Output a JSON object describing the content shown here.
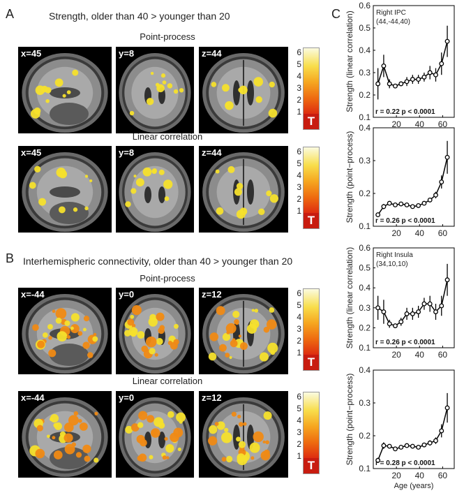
{
  "panel_a": {
    "letter": "A",
    "title": "Strength, older than 40 > younger than 20",
    "row1_label": "Point-process",
    "row2_label": "Linear correlation",
    "row1_coords": [
      "x=45",
      "y=8",
      "z=44"
    ],
    "row2_coords": [
      "x=45",
      "y=8",
      "z=44"
    ]
  },
  "panel_b": {
    "letter": "B",
    "title": "Interhemispheric connectivity, older than 40 > younger than 20",
    "row1_label": "Point-process",
    "row2_label": "Linear correlation",
    "row1_coords": [
      "x=-44",
      "y=0",
      "z=12"
    ],
    "row2_coords": [
      "x=-44",
      "y=0",
      "z=12"
    ]
  },
  "panel_c": {
    "letter": "C",
    "xlabel": "Age (years)"
  },
  "colorbar": {
    "ticks": [
      "6",
      "5",
      "4",
      "3",
      "2",
      "1"
    ],
    "label": "T"
  },
  "colors": {
    "line": "#000000",
    "blob_yellow": "#f6e02c",
    "blob_orange": "#f08a14",
    "colorbar_low": "#b01010",
    "colorbar_high": "#fbfbe0"
  },
  "chart_data": [
    {
      "type": "line",
      "annotation": [
        "Right IPC",
        "(44,-44,40)"
      ],
      "ylabel": "Strength (linear correlation)",
      "xlabel": "",
      "xlim": [
        0,
        70
      ],
      "xticks": [
        20,
        40,
        60
      ],
      "ylim": [
        0.1,
        0.6
      ],
      "yticks": [
        0.1,
        0.2,
        0.3,
        0.4,
        0.5,
        0.6
      ],
      "ytick_labels": [
        "0.1",
        "0.2",
        "0.3",
        "0.4",
        "0.5",
        "0.6"
      ],
      "stats": "r = 0.22   p < 0.0001",
      "x": [
        4,
        9,
        14,
        19,
        24,
        29,
        34,
        39,
        44,
        49,
        54,
        59,
        64
      ],
      "y": [
        0.25,
        0.33,
        0.25,
        0.24,
        0.25,
        0.26,
        0.27,
        0.27,
        0.28,
        0.3,
        0.29,
        0.34,
        0.44
      ],
      "err": [
        0.07,
        0.05,
        0.02,
        0.01,
        0.01,
        0.02,
        0.02,
        0.02,
        0.02,
        0.03,
        0.03,
        0.05,
        0.07
      ]
    },
    {
      "type": "line",
      "ylabel": "Strength (point−process)",
      "xlabel": "",
      "xlim": [
        0,
        70
      ],
      "xticks": [
        20,
        40,
        60
      ],
      "ylim": [
        0.1,
        0.4
      ],
      "yticks": [
        0.1,
        0.2,
        0.3,
        0.4
      ],
      "ytick_labels": [
        "0.1",
        "0.2",
        "0.3",
        "0.4"
      ],
      "stats": "r = 0.26   p < 0.0001",
      "x": [
        4,
        9,
        14,
        19,
        24,
        29,
        34,
        39,
        44,
        49,
        54,
        59,
        64
      ],
      "y": [
        0.135,
        0.16,
        0.17,
        0.165,
        0.168,
        0.165,
        0.16,
        0.163,
        0.17,
        0.18,
        0.195,
        0.235,
        0.31
      ],
      "err": [
        0.005,
        0.008,
        0.005,
        0.004,
        0.004,
        0.004,
        0.004,
        0.004,
        0.005,
        0.006,
        0.01,
        0.02,
        0.05
      ]
    },
    {
      "type": "line",
      "annotation": [
        "Right Insula",
        "(34,10,10)"
      ],
      "ylabel": "Strength (linear correlation)",
      "xlabel": "",
      "xlim": [
        0,
        70
      ],
      "xticks": [
        20,
        40,
        60
      ],
      "ylim": [
        0.1,
        0.6
      ],
      "yticks": [
        0.1,
        0.2,
        0.3,
        0.4,
        0.5,
        0.6
      ],
      "ytick_labels": [
        "0.1",
        "0.2",
        "0.3",
        "0.4",
        "0.5",
        "0.6"
      ],
      "stats": "r = 0.26   p < 0.0001",
      "x": [
        4,
        9,
        14,
        19,
        24,
        29,
        34,
        39,
        44,
        49,
        54,
        59,
        64
      ],
      "y": [
        0.3,
        0.28,
        0.22,
        0.21,
        0.23,
        0.27,
        0.27,
        0.28,
        0.32,
        0.32,
        0.28,
        0.31,
        0.44
      ],
      "err": [
        0.06,
        0.06,
        0.02,
        0.01,
        0.02,
        0.03,
        0.03,
        0.03,
        0.03,
        0.04,
        0.04,
        0.05,
        0.08
      ]
    },
    {
      "type": "line",
      "ylabel": "Strength (point−process)",
      "xlabel": "Age (years)",
      "xlim": [
        0,
        70
      ],
      "xticks": [
        20,
        40,
        60
      ],
      "ylim": [
        0.1,
        0.4
      ],
      "yticks": [
        0.1,
        0.2,
        0.3,
        0.4
      ],
      "ytick_labels": [
        "0.1",
        "0.2",
        "0.3",
        "0.4"
      ],
      "stats": "r = 0.28   p < 0.0001",
      "x": [
        4,
        9,
        14,
        19,
        24,
        29,
        34,
        39,
        44,
        49,
        54,
        59,
        64
      ],
      "y": [
        0.125,
        0.17,
        0.168,
        0.16,
        0.165,
        0.17,
        0.168,
        0.165,
        0.172,
        0.178,
        0.185,
        0.215,
        0.285
      ],
      "err": [
        0.008,
        0.01,
        0.006,
        0.005,
        0.005,
        0.005,
        0.005,
        0.006,
        0.006,
        0.008,
        0.01,
        0.02,
        0.045
      ]
    }
  ]
}
